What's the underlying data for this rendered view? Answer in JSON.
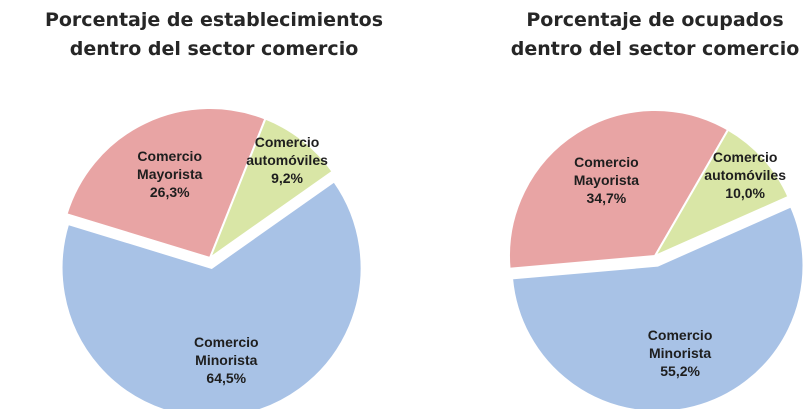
{
  "charts": [
    {
      "chart_data": {
        "type": "pie",
        "title": "Porcentaje de establecimientos\ndentro del sector comercio",
        "categories": [
          "Comercio\nMayorista",
          "Comercio\nautomóviles",
          "Comercio\nMinorista"
        ],
        "values": [
          26.3,
          9.2,
          64.5
        ],
        "value_labels": [
          "26,3%",
          "9,2%",
          "64,5%"
        ],
        "colors": [
          "#e8a4a4",
          "#d9e6a6",
          "#a8c2e6"
        ]
      }
    },
    {
      "chart_data": {
        "type": "pie",
        "title": "Porcentaje de ocupados\ndentro del sector comercio",
        "categories": [
          "Comercio\nMayorista",
          "Comercio\nautomóviles",
          "Comercio\nMinorista"
        ],
        "values": [
          34.7,
          10.0,
          55.2
        ],
        "value_labels": [
          "34,7%",
          "10,0%",
          "55,2%"
        ],
        "colors": [
          "#e8a4a4",
          "#d9e6a6",
          "#a8c2e6"
        ]
      }
    }
  ]
}
